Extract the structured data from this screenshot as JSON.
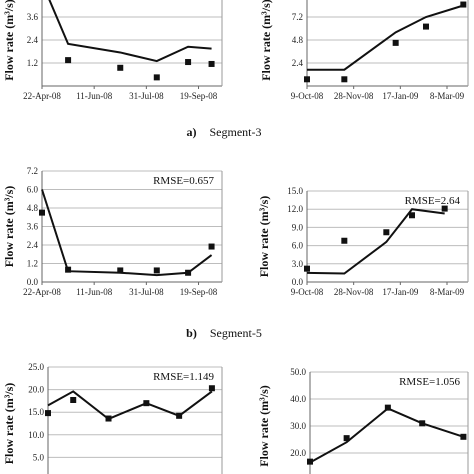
{
  "captions": [
    {
      "letter": "a)",
      "text": "Segment-3"
    },
    {
      "letter": "b)",
      "text": "Segment-5"
    }
  ],
  "chart_data": [
    {
      "type": "line",
      "panel": "segment-3-left",
      "ylabel": "Flow rate (m³/s)",
      "ylim": [
        0,
        4.8
      ],
      "yticks": [
        "1.2",
        "2.4",
        "3.6"
      ],
      "x_ticks": [
        "22-Apr-08",
        "11-Jun-08",
        "31-Jul-08",
        "19-Sep-08"
      ],
      "x_tick_pos": [
        0,
        1,
        2,
        3
      ],
      "xlim": [
        0,
        3.45
      ],
      "rmse": "",
      "line": {
        "x": [
          0.0,
          0.5,
          1.5,
          2.2,
          2.8,
          3.25
        ],
        "y": [
          5.4,
          2.2,
          1.75,
          1.3,
          2.05,
          1.95
        ]
      },
      "points": {
        "x": [
          0.5,
          1.5,
          2.2,
          2.8,
          3.25
        ],
        "y": [
          1.35,
          0.95,
          0.45,
          1.25,
          1.15
        ]
      },
      "grid": true
    },
    {
      "type": "line",
      "panel": "segment-3-right",
      "ylabel": "Flow rate (m³/s)",
      "ylim": [
        0,
        9.6
      ],
      "yticks": [
        "2.4",
        "4.8",
        "7.2"
      ],
      "x_ticks": [
        "9-Oct-08",
        "28-Nov-08",
        "17-Jan-09",
        "8-Mar-09"
      ],
      "x_tick_pos": [
        0,
        1,
        2,
        3
      ],
      "xlim": [
        0,
        3.45
      ],
      "rmse": "",
      "line": {
        "x": [
          0.0,
          0.8,
          1.9,
          2.55,
          3.35
        ],
        "y": [
          1.7,
          1.7,
          5.6,
          7.2,
          8.4
        ]
      },
      "points": {
        "x": [
          0.0,
          0.8,
          1.9,
          2.55,
          3.35
        ],
        "y": [
          0.7,
          0.7,
          4.5,
          6.2,
          8.5
        ]
      },
      "grid": true
    },
    {
      "type": "line",
      "panel": "segment-5-left",
      "ylabel": "Flow rate (m³/s)",
      "ylim": [
        0,
        7.2
      ],
      "yticks": [
        "0.0",
        "1.2",
        "2.4",
        "3.6",
        "4.8",
        "6.0",
        "7.2"
      ],
      "x_ticks": [
        "22-Apr-08",
        "11-Jun-08",
        "31-Jul-08",
        "19-Sep-08"
      ],
      "x_tick_pos": [
        0,
        1,
        2,
        3
      ],
      "xlim": [
        0,
        3.45
      ],
      "rmse": "RMSE=0.657",
      "line": {
        "x": [
          0.0,
          0.5,
          1.5,
          2.2,
          2.8,
          3.25
        ],
        "y": [
          6.0,
          0.7,
          0.6,
          0.45,
          0.6,
          1.75
        ]
      },
      "points": {
        "x": [
          0.0,
          0.5,
          1.5,
          2.2,
          2.8,
          3.25
        ],
        "y": [
          4.5,
          0.8,
          0.75,
          0.75,
          0.6,
          2.3
        ]
      },
      "grid": true
    },
    {
      "type": "line",
      "panel": "segment-5-right",
      "ylabel": "Flow rate (m³/s)",
      "ylim": [
        0,
        15.0
      ],
      "yticks": [
        "0.0",
        "3.0",
        "6.0",
        "9.0",
        "12.0",
        "15.0"
      ],
      "x_ticks": [
        "9-Oct-08",
        "28-Nov-08",
        "17-Jan-09",
        "8-Mar-09"
      ],
      "x_tick_pos": [
        0,
        1,
        2,
        3
      ],
      "xlim": [
        0,
        3.45
      ],
      "rmse": "RMSE=2.64",
      "line": {
        "x": [
          0.0,
          0.8,
          1.7,
          2.25,
          2.95
        ],
        "y": [
          1.5,
          1.4,
          6.6,
          12.0,
          11.3
        ]
      },
      "points": {
        "x": [
          0.0,
          0.8,
          1.7,
          2.25,
          2.95
        ],
        "y": [
          2.2,
          6.8,
          8.2,
          11.0,
          12.1
        ]
      },
      "grid": true
    },
    {
      "type": "line",
      "panel": "segment-7-left",
      "ylabel": "Flow rate (m³/s)",
      "ylim": [
        0,
        25.0
      ],
      "yticks": [
        "5.0",
        "10.0",
        "15.0",
        "20.0",
        "25.0"
      ],
      "x_ticks": [],
      "x_tick_pos": [],
      "xlim": [
        0,
        3.45
      ],
      "rmse": "RMSE=1.149",
      "line": {
        "x": [
          0.0,
          0.5,
          1.2,
          1.95,
          2.6,
          3.25
        ],
        "y": [
          16.5,
          19.6,
          13.5,
          17.0,
          14.2,
          19.6
        ]
      },
      "points": {
        "x": [
          0.0,
          0.5,
          1.2,
          1.95,
          2.6,
          3.25
        ],
        "y": [
          14.8,
          17.7,
          13.6,
          17.0,
          14.2,
          20.3
        ]
      },
      "grid": true
    },
    {
      "type": "line",
      "panel": "segment-7-right",
      "ylabel": "Flow rate (m³/s)",
      "ylim": [
        10.0,
        50.0
      ],
      "yticks": [
        "10.0",
        "20.0",
        "30.0",
        "40.0",
        "50.0"
      ],
      "x_ticks": [],
      "x_tick_pos": [],
      "xlim": [
        0,
        3.45
      ],
      "rmse": "RMSE=1.056",
      "line": {
        "x": [
          0.0,
          0.8,
          1.7,
          2.45,
          3.35
        ],
        "y": [
          16.5,
          24.0,
          36.5,
          31.0,
          26.0
        ]
      },
      "points": {
        "x": [
          0.0,
          0.8,
          1.7,
          2.45,
          3.35
        ],
        "y": [
          16.8,
          25.5,
          36.8,
          31.0,
          26.0
        ]
      },
      "grid": true
    }
  ]
}
